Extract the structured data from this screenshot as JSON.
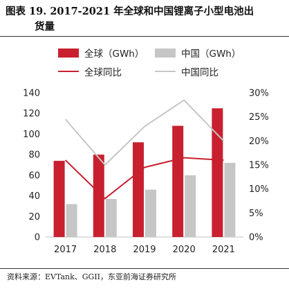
{
  "title": {
    "line1": "图表 19. 2017-2021 年全球和中国锂离子小型电池出",
    "line2": "货量"
  },
  "source": "资料来源：EVTank、GGII，东亚前海证券研究所",
  "legend": {
    "global_bar": "全球（GWh）",
    "china_bar": "中国（GWh）",
    "global_line": "全球同比",
    "china_line": "中国同比"
  },
  "colors": {
    "global": "#c8202f",
    "china": "#c6c6c6"
  },
  "chart_data": {
    "type": "bar",
    "categories": [
      "2017",
      "2018",
      "2019",
      "2020",
      "2021"
    ],
    "series": [
      {
        "name": "全球（GWh）",
        "axis": "left",
        "kind": "bar",
        "values": [
          74,
          80,
          92,
          108,
          125
        ]
      },
      {
        "name": "中国（GWh）",
        "axis": "left",
        "kind": "bar",
        "values": [
          32,
          37,
          46,
          60,
          72
        ]
      },
      {
        "name": "全球同比",
        "axis": "right",
        "kind": "line",
        "values": [
          16,
          8,
          14.5,
          16.5,
          16
        ]
      },
      {
        "name": "中国同比",
        "axis": "right",
        "kind": "line",
        "values": [
          24.5,
          15,
          23,
          28.5,
          20
        ]
      }
    ],
    "ylim_left": [
      0,
      140
    ],
    "yticks_left": [
      "0",
      "20",
      "40",
      "60",
      "80",
      "100",
      "120",
      "140"
    ],
    "ylim_right": [
      0,
      30
    ],
    "yticks_right": [
      "0%",
      "5%",
      "10%",
      "15%",
      "20%",
      "25%",
      "30%"
    ],
    "grid": false,
    "legend_position": "top"
  }
}
